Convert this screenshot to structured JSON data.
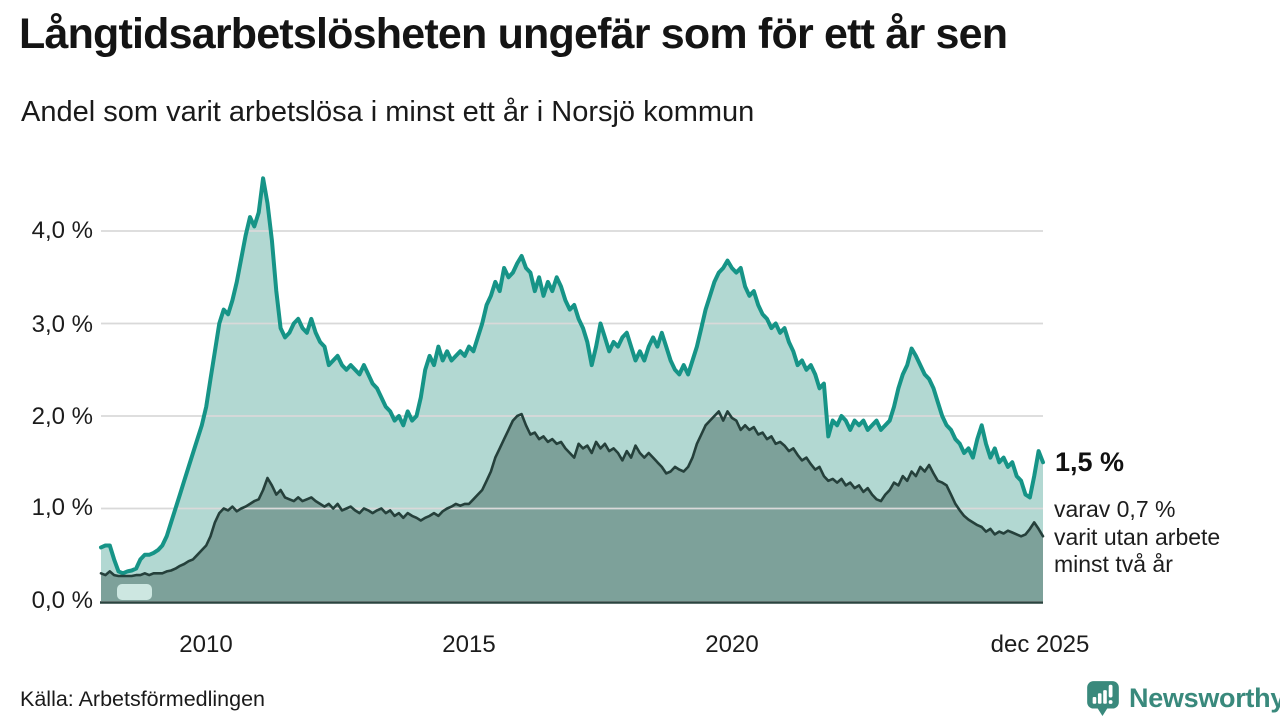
{
  "header": {
    "title": "Långtidsarbetslösheten ungefär som för ett år sen",
    "subtitle": "Andel som varit arbetslösa i minst ett år i Norsjö kommun"
  },
  "annotation": {
    "latest_value": "1,5 %",
    "note_line1": "varav 0,7 %",
    "note_line2": "varit utan arbete",
    "note_line3": "minst två år"
  },
  "footer": {
    "source": "Källa: Arbetsförmedlingen",
    "brand": "Newsworthy",
    "brand_color": "#39897c",
    "brand_icon": "speech-bubble-bar-chart"
  },
  "chart_data": {
    "type": "area",
    "title": "Långtidsarbetslösheten ungefär som för ett år sen",
    "subtitle": "Andel som varit arbetslösa i minst ett år i Norsjö kommun",
    "xlabel": "",
    "ylabel": "",
    "ylim": [
      0,
      4.8
    ],
    "x_start_year": 2008,
    "x_end_label": "dec 2025",
    "x_resolution": "monthly",
    "grid": "horizontal",
    "legend_position": "none",
    "y_tick_labels": [
      "4,0 %",
      "3,0 %",
      "2,0 %",
      "1,0 %",
      "0,0 %"
    ],
    "y_tick_values": [
      4.0,
      3.0,
      2.0,
      1.0,
      0.0
    ],
    "x_tick_labels": [
      "2010",
      "2015",
      "2020",
      "dec 2025"
    ],
    "x_tick_years": [
      2010,
      2015,
      2020,
      2025.92
    ],
    "gridline_color": "#d9d9d9",
    "axis_line_color": "#2a443f",
    "no_data_patch_color": "#cde7e1",
    "series": [
      {
        "id": "minst-ett-ar",
        "name": "Andel arbetslösa minst ett år",
        "color": "#169487",
        "fill": "#b2d8d2",
        "latest": 1.5,
        "values": [
          0.58,
          0.6,
          0.6,
          0.45,
          0.32,
          0.3,
          0.32,
          0.33,
          0.35,
          0.45,
          0.5,
          0.5,
          0.52,
          0.55,
          0.6,
          0.7,
          0.85,
          1.0,
          1.15,
          1.3,
          1.45,
          1.6,
          1.75,
          1.9,
          2.1,
          2.4,
          2.7,
          3.0,
          3.15,
          3.1,
          3.25,
          3.45,
          3.7,
          3.95,
          4.15,
          4.05,
          4.2,
          4.57,
          4.3,
          3.9,
          3.35,
          2.95,
          2.85,
          2.9,
          3.0,
          3.05,
          2.95,
          2.9,
          3.05,
          2.9,
          2.8,
          2.75,
          2.55,
          2.6,
          2.65,
          2.55,
          2.5,
          2.55,
          2.5,
          2.45,
          2.55,
          2.45,
          2.35,
          2.3,
          2.2,
          2.1,
          2.05,
          1.95,
          2.0,
          1.9,
          2.05,
          1.95,
          2.0,
          2.2,
          2.5,
          2.65,
          2.55,
          2.75,
          2.6,
          2.7,
          2.6,
          2.65,
          2.7,
          2.65,
          2.75,
          2.7,
          2.85,
          3.0,
          3.2,
          3.3,
          3.45,
          3.35,
          3.6,
          3.5,
          3.55,
          3.65,
          3.73,
          3.6,
          3.55,
          3.35,
          3.5,
          3.3,
          3.45,
          3.35,
          3.5,
          3.4,
          3.25,
          3.15,
          3.2,
          3.05,
          2.95,
          2.8,
          2.55,
          2.75,
          3.0,
          2.85,
          2.7,
          2.8,
          2.75,
          2.85,
          2.9,
          2.75,
          2.6,
          2.7,
          2.6,
          2.75,
          2.85,
          2.75,
          2.9,
          2.75,
          2.6,
          2.5,
          2.45,
          2.55,
          2.45,
          2.6,
          2.75,
          2.95,
          3.15,
          3.3,
          3.45,
          3.55,
          3.6,
          3.68,
          3.6,
          3.55,
          3.6,
          3.4,
          3.3,
          3.35,
          3.2,
          3.1,
          3.05,
          2.95,
          3.0,
          2.9,
          2.95,
          2.8,
          2.7,
          2.55,
          2.6,
          2.5,
          2.55,
          2.45,
          2.3,
          2.35,
          1.78,
          1.95,
          1.9,
          2.0,
          1.95,
          1.85,
          1.95,
          1.9,
          1.95,
          1.85,
          1.9,
          1.95,
          1.85,
          1.9,
          1.95,
          2.1,
          2.3,
          2.45,
          2.55,
          2.73,
          2.65,
          2.55,
          2.45,
          2.4,
          2.3,
          2.15,
          2.0,
          1.9,
          1.85,
          1.75,
          1.7,
          1.6,
          1.65,
          1.55,
          1.75,
          1.9,
          1.7,
          1.55,
          1.65,
          1.5,
          1.55,
          1.45,
          1.5,
          1.35,
          1.3,
          1.15,
          1.12,
          1.35,
          1.62,
          1.5
        ]
      },
      {
        "id": "minst-tva-ar",
        "name": "Andel arbetslösa minst två år",
        "color": "#25403b",
        "fill": "#7da19a",
        "latest": 0.7,
        "values": [
          0.3,
          0.28,
          0.32,
          0.28,
          0.27,
          0.27,
          0.27,
          0.27,
          0.28,
          0.28,
          0.3,
          0.28,
          0.3,
          0.3,
          0.3,
          0.32,
          0.33,
          0.35,
          0.38,
          0.4,
          0.43,
          0.45,
          0.5,
          0.55,
          0.6,
          0.7,
          0.85,
          0.95,
          1.0,
          0.98,
          1.02,
          0.97,
          1.0,
          1.02,
          1.05,
          1.08,
          1.1,
          1.2,
          1.33,
          1.25,
          1.15,
          1.2,
          1.12,
          1.1,
          1.08,
          1.12,
          1.08,
          1.1,
          1.12,
          1.08,
          1.05,
          1.02,
          1.05,
          1.0,
          1.05,
          0.98,
          1.0,
          1.02,
          0.98,
          0.95,
          1.0,
          0.98,
          0.95,
          0.98,
          1.0,
          0.95,
          0.98,
          0.92,
          0.95,
          0.9,
          0.95,
          0.92,
          0.9,
          0.87,
          0.9,
          0.92,
          0.95,
          0.92,
          0.97,
          1.0,
          1.02,
          1.05,
          1.03,
          1.05,
          1.05,
          1.1,
          1.15,
          1.2,
          1.3,
          1.4,
          1.55,
          1.65,
          1.75,
          1.85,
          1.95,
          2.0,
          2.02,
          1.9,
          1.8,
          1.82,
          1.75,
          1.78,
          1.72,
          1.75,
          1.7,
          1.72,
          1.65,
          1.6,
          1.55,
          1.7,
          1.65,
          1.68,
          1.6,
          1.72,
          1.65,
          1.7,
          1.62,
          1.65,
          1.6,
          1.52,
          1.62,
          1.55,
          1.68,
          1.6,
          1.55,
          1.6,
          1.55,
          1.5,
          1.45,
          1.38,
          1.4,
          1.45,
          1.42,
          1.4,
          1.45,
          1.55,
          1.7,
          1.8,
          1.9,
          1.95,
          2.0,
          2.05,
          1.95,
          2.05,
          1.98,
          1.95,
          1.85,
          1.9,
          1.85,
          1.88,
          1.8,
          1.82,
          1.75,
          1.78,
          1.7,
          1.72,
          1.68,
          1.62,
          1.65,
          1.58,
          1.52,
          1.55,
          1.48,
          1.42,
          1.45,
          1.35,
          1.3,
          1.32,
          1.28,
          1.32,
          1.25,
          1.28,
          1.22,
          1.25,
          1.18,
          1.22,
          1.15,
          1.1,
          1.08,
          1.15,
          1.2,
          1.28,
          1.25,
          1.35,
          1.3,
          1.4,
          1.35,
          1.45,
          1.4,
          1.47,
          1.38,
          1.3,
          1.28,
          1.25,
          1.15,
          1.05,
          0.98,
          0.92,
          0.88,
          0.85,
          0.82,
          0.8,
          0.75,
          0.78,
          0.72,
          0.75,
          0.73,
          0.76,
          0.74,
          0.72,
          0.7,
          0.72,
          0.78,
          0.85,
          0.78,
          0.7
        ]
      }
    ]
  }
}
